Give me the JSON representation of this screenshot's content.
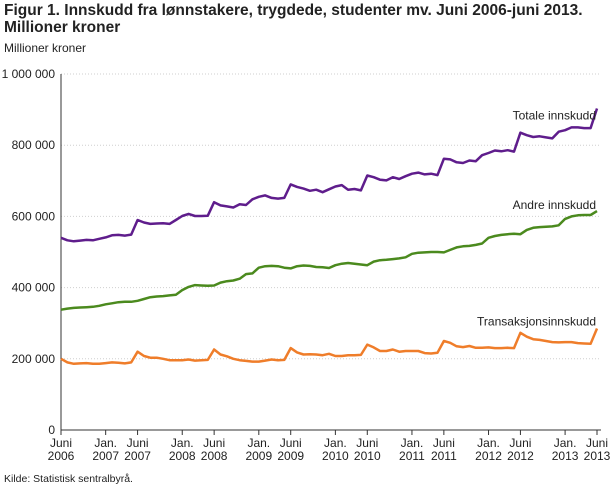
{
  "chart_data": {
    "type": "line",
    "title": "Figur 1. Innskudd fra lønnstakere, trygdede, studenter mv. Juni 2006-juni 2013. Millioner kroner",
    "ylabel": "Millioner kroner",
    "source": "Kilde: Statistisk sentralbyrå.",
    "categories": [
      "Juni 2006",
      null,
      null,
      null,
      null,
      null,
      null,
      "Jan. 2007",
      null,
      null,
      null,
      null,
      "Juni 2007",
      null,
      null,
      null,
      null,
      null,
      null,
      "Jan. 2008",
      null,
      null,
      null,
      null,
      "Juni 2008",
      null,
      null,
      null,
      null,
      null,
      null,
      "Jan. 2009",
      null,
      null,
      null,
      null,
      "Juni 2009",
      null,
      null,
      null,
      null,
      null,
      null,
      "Jan. 2010",
      null,
      null,
      null,
      null,
      "Juni 2010",
      null,
      null,
      null,
      null,
      null,
      null,
      "Jan. 2011",
      null,
      null,
      null,
      null,
      "Juni 2011",
      null,
      null,
      null,
      null,
      null,
      null,
      "Jan. 2012",
      null,
      null,
      null,
      null,
      "Juni 2012",
      null,
      null,
      null,
      null,
      null,
      null,
      "Jan. 2013",
      null,
      null,
      null,
      null,
      "Juni 2013"
    ],
    "ylim": [
      0,
      1000000
    ],
    "yticks": [
      0,
      {
        "value": 200000,
        "label": "200 000"
      },
      {
        "value": 400000,
        "label": "400 000"
      },
      {
        "value": 600000,
        "label": "600 000"
      },
      {
        "value": 800000,
        "label": "800 000"
      },
      {
        "value": 1000000,
        "label": "1 000 000"
      }
    ],
    "grid": true,
    "series": [
      {
        "name": "Totale innskudd",
        "color": "#5f1d8c",
        "values": [
          540000,
          533000,
          530000,
          532000,
          534000,
          533000,
          537000,
          541000,
          547000,
          548000,
          546000,
          549000,
          590000,
          583000,
          579000,
          580000,
          581000,
          579000,
          590000,
          601000,
          607000,
          601000,
          601000,
          602000,
          640000,
          631000,
          628000,
          625000,
          634000,
          632000,
          648000,
          655000,
          659000,
          652000,
          650000,
          652000,
          690000,
          683000,
          678000,
          672000,
          675000,
          668000,
          676000,
          684000,
          688000,
          675000,
          677000,
          673000,
          715000,
          710000,
          703000,
          701000,
          710000,
          705000,
          713000,
          720000,
          723000,
          718000,
          720000,
          716000,
          762000,
          760000,
          752000,
          750000,
          757000,
          755000,
          772000,
          778000,
          785000,
          783000,
          786000,
          782000,
          835000,
          828000,
          823000,
          825000,
          822000,
          819000,
          838000,
          842000,
          850000,
          850000,
          848000,
          848000,
          903000
        ]
      },
      {
        "name": "Andre innskudd",
        "color": "#4b8a1e",
        "values": [
          338000,
          341000,
          343000,
          344000,
          345000,
          346000,
          349000,
          353000,
          356000,
          359000,
          360000,
          360000,
          363000,
          368000,
          373000,
          375000,
          376000,
          378000,
          380000,
          393000,
          402000,
          407000,
          406000,
          405000,
          406000,
          414000,
          418000,
          420000,
          425000,
          438000,
          440000,
          456000,
          460000,
          461000,
          460000,
          456000,
          454000,
          460000,
          462000,
          461000,
          458000,
          457000,
          455000,
          463000,
          467000,
          469000,
          467000,
          465000,
          463000,
          473000,
          477000,
          478000,
          480000,
          482000,
          485000,
          495000,
          498000,
          499000,
          500000,
          500000,
          499000,
          506000,
          513000,
          516000,
          517000,
          520000,
          524000,
          540000,
          545000,
          548000,
          550000,
          551000,
          550000,
          562000,
          568000,
          570000,
          571000,
          572000,
          575000,
          593000,
          600000,
          603000,
          604000,
          604000,
          615000
        ]
      },
      {
        "name": "Transaksjonsinnskudd",
        "color": "#ef7d2a",
        "values": [
          200000,
          190000,
          186000,
          187000,
          188000,
          186000,
          186000,
          188000,
          190000,
          189000,
          187000,
          190000,
          220000,
          208000,
          203000,
          203000,
          200000,
          196000,
          196000,
          196000,
          198000,
          195000,
          196000,
          197000,
          226000,
          212000,
          207000,
          200000,
          196000,
          194000,
          192000,
          192000,
          195000,
          198000,
          196000,
          197000,
          230000,
          218000,
          212000,
          213000,
          212000,
          210000,
          214000,
          208000,
          208000,
          210000,
          210000,
          211000,
          240000,
          232000,
          222000,
          222000,
          226000,
          220000,
          222000,
          222000,
          222000,
          216000,
          215000,
          217000,
          250000,
          245000,
          235000,
          233000,
          236000,
          231000,
          231000,
          232000,
          230000,
          230000,
          231000,
          230000,
          273000,
          262000,
          255000,
          253000,
          250000,
          247000,
          246000,
          247000,
          247000,
          244000,
          243000,
          242000,
          285000
        ]
      }
    ]
  }
}
